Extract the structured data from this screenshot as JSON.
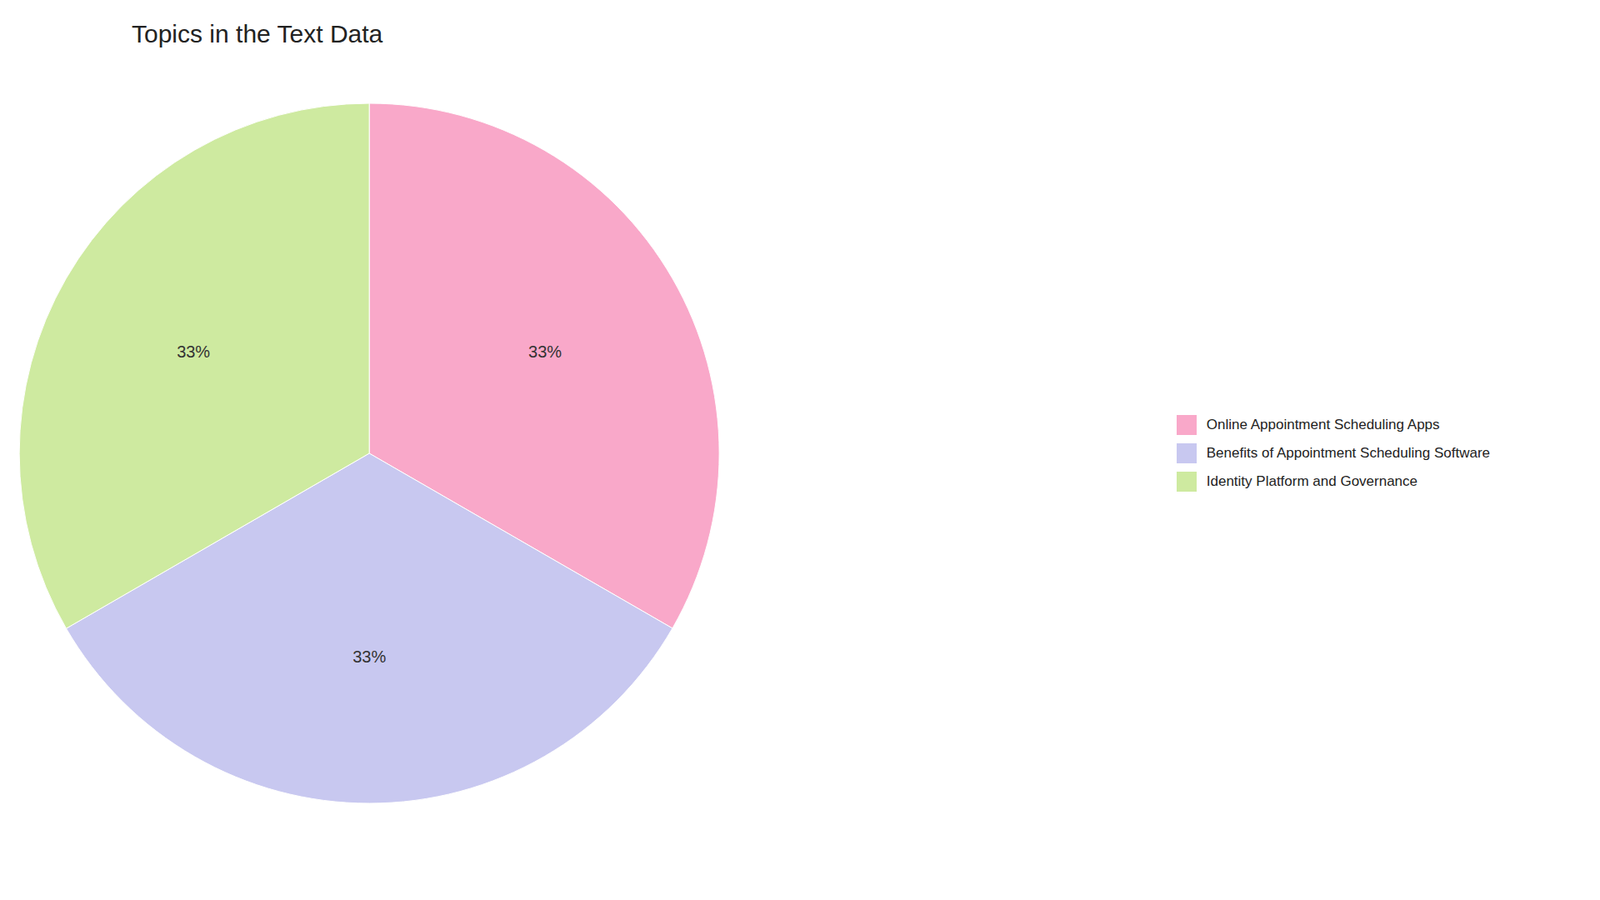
{
  "chart_data": {
    "type": "pie",
    "title": "Topics in the Text Data",
    "categories": [
      "Online Appointment Scheduling Apps",
      "Benefits of Appointment Scheduling Software",
      "Identity Platform and Governance"
    ],
    "values": [
      33.33,
      33.33,
      33.34
    ],
    "value_labels": [
      "33%",
      "33%",
      "33%"
    ],
    "colors": [
      "#F9A8C9",
      "#C8C8F0",
      "#CEEAA0"
    ],
    "data_labels": true,
    "legend": "right"
  }
}
